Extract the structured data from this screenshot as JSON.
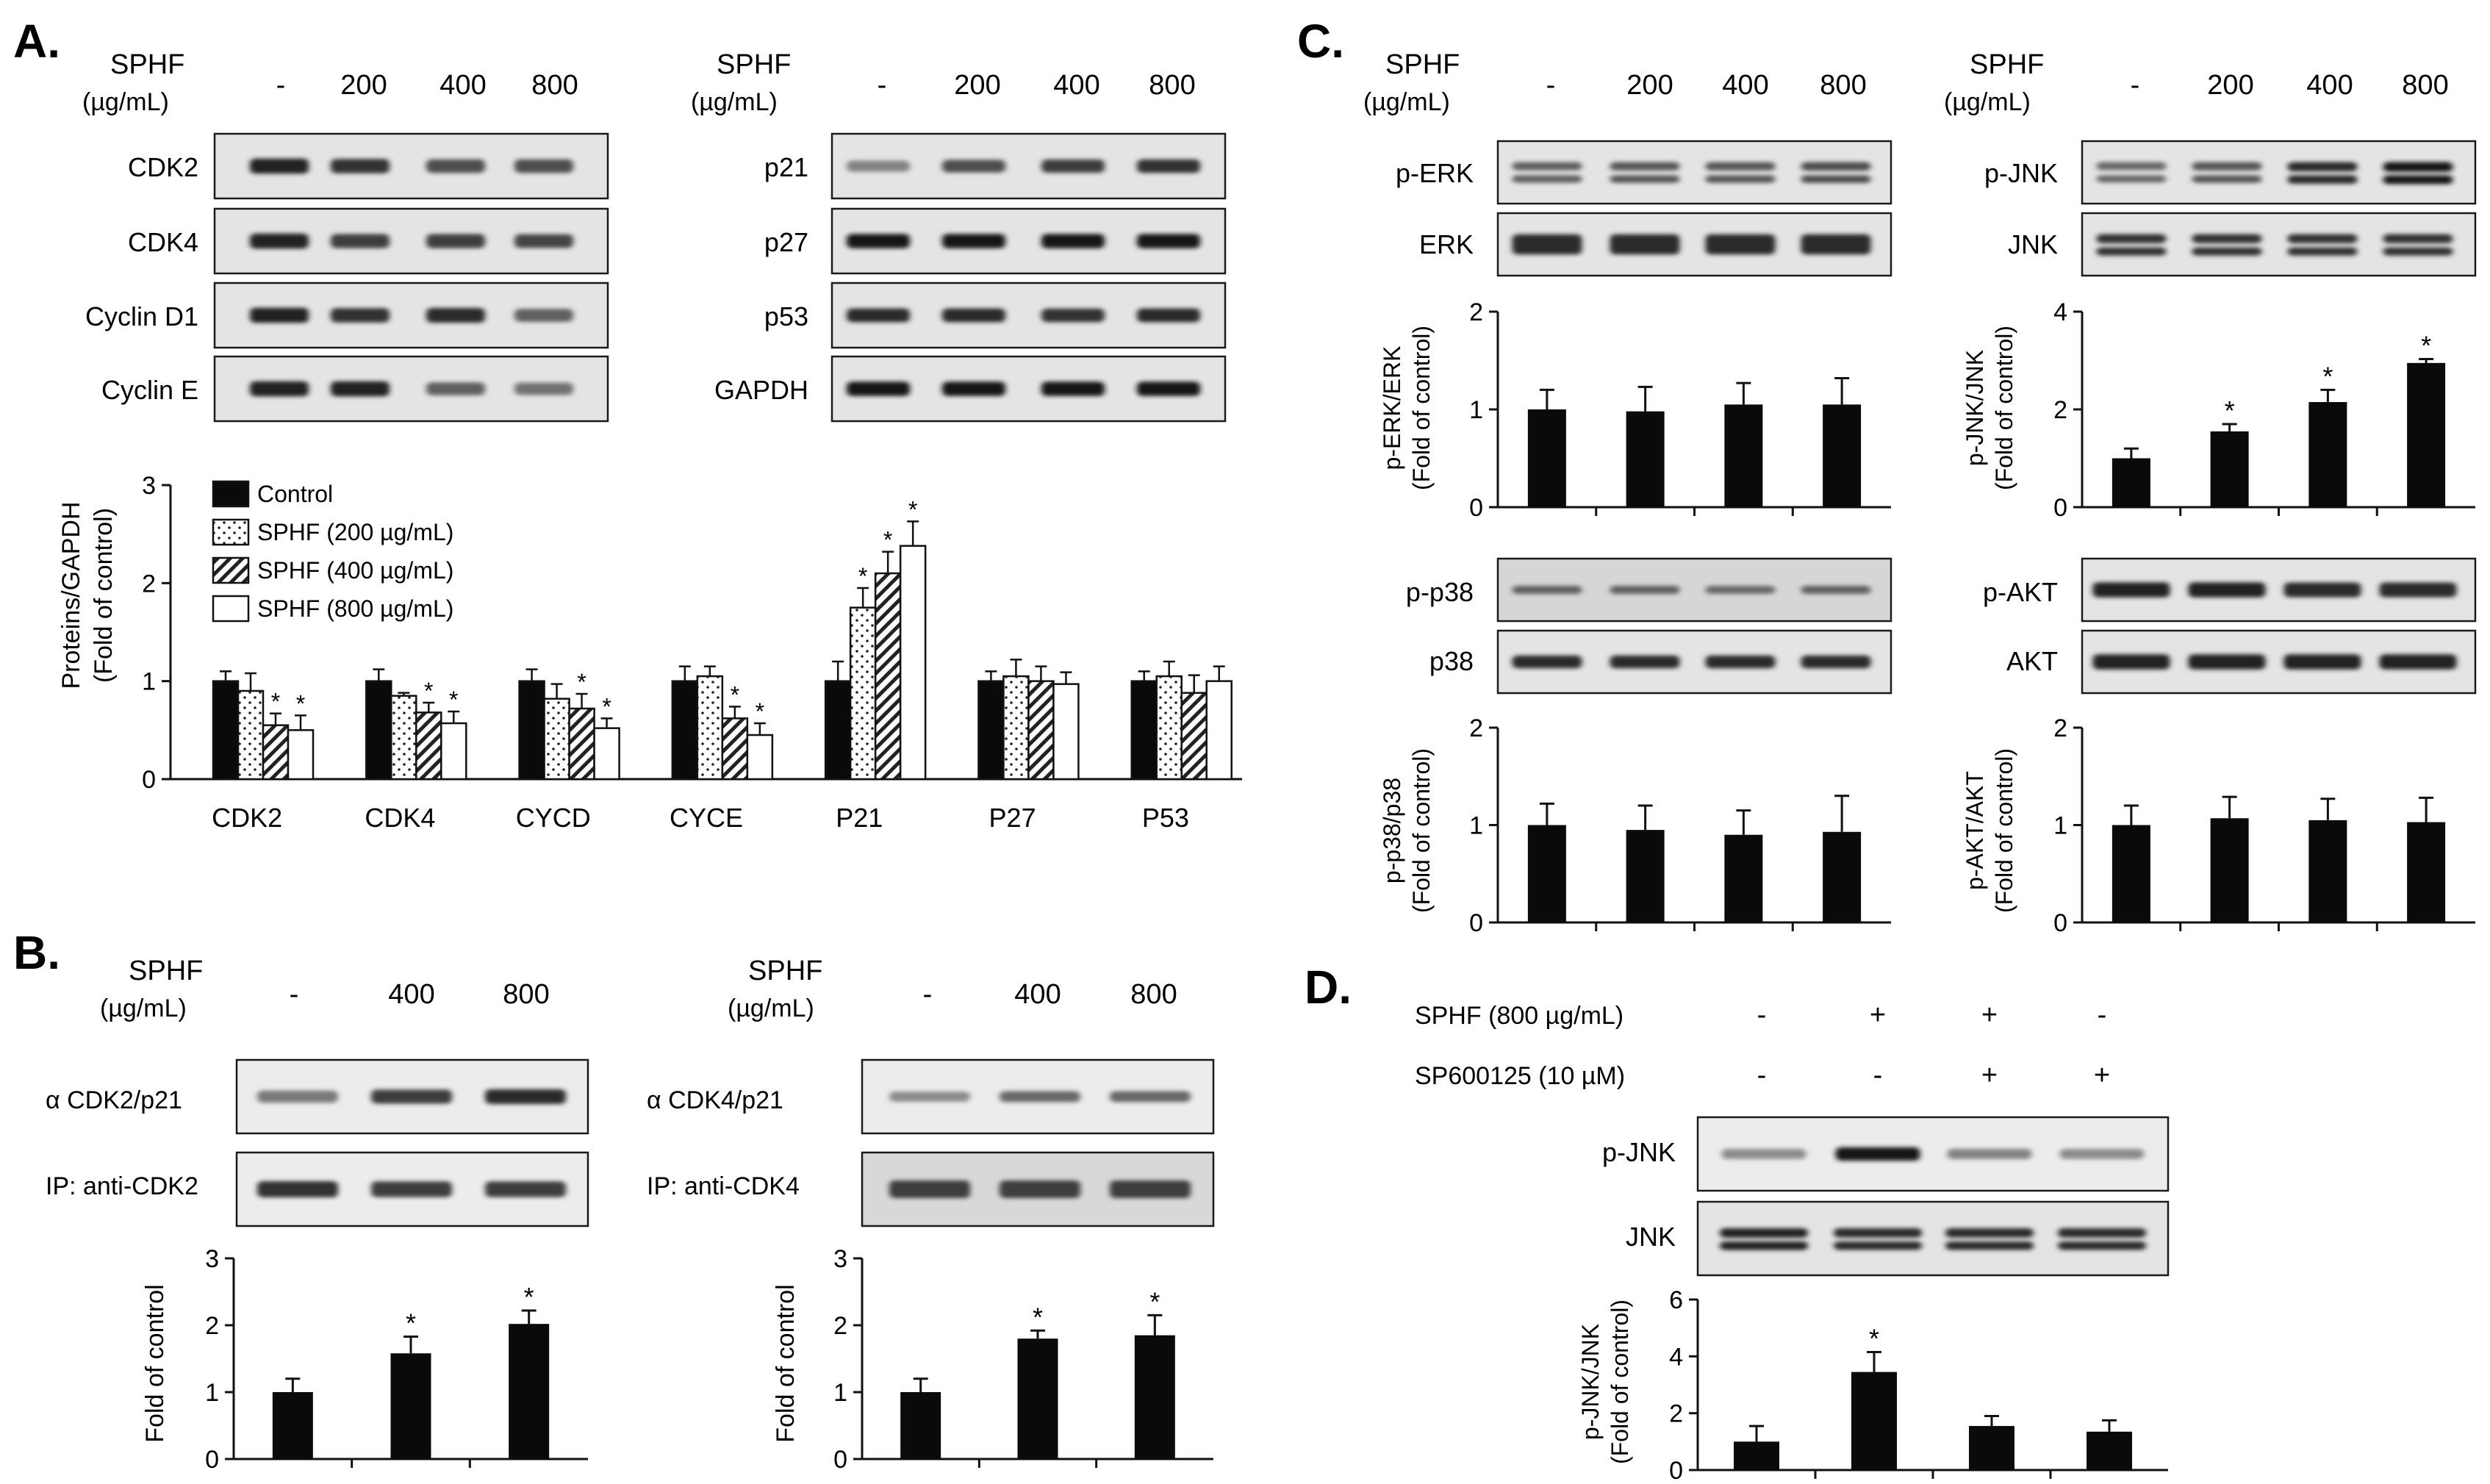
{
  "figure": {
    "panels": {
      "A": {
        "label": "A.",
        "treatment": "SPHF",
        "unit": "(µg/mL)",
        "doses": [
          "-",
          "200",
          "400",
          "800"
        ],
        "blot_left": [
          "CDK2",
          "CDK4",
          "Cyclin D1",
          "Cyclin E"
        ],
        "blot_right": [
          "p21",
          "p27",
          "p53",
          "GAPDH"
        ]
      },
      "B": {
        "label": "B.",
        "treatment": "SPHF",
        "unit": "(µg/mL)",
        "doses": [
          "-",
          "400",
          "800"
        ],
        "left_blots": [
          "α CDK2/p21",
          "IP: anti-CDK2"
        ],
        "right_blots": [
          "α CDK4/p21",
          "IP: anti-CDK4"
        ]
      },
      "C": {
        "label": "C.",
        "treatment": "SPHF",
        "unit": "(µg/mL)",
        "doses": [
          "-",
          "200",
          "400",
          "800"
        ],
        "erk_blots": [
          "p-ERK",
          "ERK"
        ],
        "jnk_blots": [
          "p-JNK",
          "JNK"
        ],
        "p38_blots": [
          "p-p38",
          "p38"
        ],
        "akt_blots": [
          "p-AKT",
          "AKT"
        ]
      },
      "D": {
        "label": "D.",
        "row1_label": "SPHF (800 µg/mL)",
        "row1_signs": [
          "-",
          "+",
          "+",
          "-"
        ],
        "row2_label": "SP600125 (10 µM)",
        "row2_signs": [
          "-",
          "-",
          "+",
          "+"
        ],
        "blots": [
          "p-JNK",
          "JNK"
        ]
      }
    },
    "blot_intensity": {
      "A_left": [
        [
          0.95,
          0.85,
          0.7,
          0.7
        ],
        [
          0.95,
          0.8,
          0.8,
          0.75
        ],
        [
          0.95,
          0.85,
          0.9,
          0.6
        ],
        [
          0.95,
          0.95,
          0.6,
          0.5
        ]
      ],
      "A_right": [
        [
          0.4,
          0.7,
          0.8,
          0.85
        ],
        [
          1,
          1,
          1,
          1
        ],
        [
          0.9,
          0.9,
          0.85,
          0.9
        ],
        [
          1,
          1,
          1,
          1
        ]
      ],
      "B_left": [
        [
          0.45,
          0.8,
          0.9
        ],
        [
          0.85,
          0.8,
          0.8
        ]
      ],
      "B_right": [
        [
          0.35,
          0.55,
          0.55
        ],
        [
          0.8,
          0.8,
          0.8
        ]
      ],
      "C_erk": [
        [
          0.6,
          0.65,
          0.65,
          0.7
        ],
        [
          0.9,
          0.9,
          0.9,
          0.9
        ]
      ],
      "C_jnk": [
        [
          0.55,
          0.65,
          0.9,
          1.0
        ],
        [
          0.85,
          0.85,
          0.85,
          0.85
        ]
      ],
      "C_p38": [
        [
          0.6,
          0.6,
          0.55,
          0.6
        ],
        [
          0.9,
          0.9,
          0.9,
          0.9
        ]
      ],
      "C_akt": [
        [
          0.95,
          0.95,
          0.9,
          0.9
        ],
        [
          0.95,
          0.95,
          0.95,
          0.95
        ]
      ],
      "D": [
        [
          0.35,
          1.0,
          0.4,
          0.35
        ],
        [
          0.95,
          0.9,
          0.9,
          0.9
        ]
      ]
    }
  },
  "chart_data": [
    {
      "id": "A",
      "type": "bar",
      "title": "",
      "ylabel": "Proteins/GAPDH",
      "ylabel2": "(Fold of control)",
      "xlabel": "",
      "ylim": [
        0,
        3
      ],
      "yticks": [
        "0",
        "1",
        "2",
        "3"
      ],
      "categories": [
        "CDK2",
        "CDK4",
        "CYCD",
        "CYCE",
        "P21",
        "P27",
        "P53"
      ],
      "series": [
        {
          "name": "Control",
          "values": [
            1,
            1,
            1,
            1,
            1,
            1,
            1
          ],
          "errors": [
            0.1,
            0.12,
            0.12,
            0.15,
            0.2,
            0.1,
            0.1
          ]
        },
        {
          "name": "SPHF (200 µg/mL)",
          "values": [
            0.9,
            0.85,
            0.82,
            1.05,
            1.75,
            1.05,
            1.05
          ],
          "errors": [
            0.18,
            0.03,
            0.15,
            0.1,
            0.2,
            0.17,
            0.15
          ]
        },
        {
          "name": "SPHF (400 µg/mL)",
          "values": [
            0.55,
            0.68,
            0.72,
            0.62,
            2.1,
            1.0,
            0.88
          ],
          "errors": [
            0.12,
            0.1,
            0.15,
            0.12,
            0.22,
            0.15,
            0.18
          ]
        },
        {
          "name": "SPHF (800 µg/mL)",
          "values": [
            0.5,
            0.57,
            0.52,
            0.45,
            2.38,
            0.97,
            1.0
          ],
          "errors": [
            0.15,
            0.12,
            0.1,
            0.12,
            0.25,
            0.12,
            0.15
          ]
        }
      ],
      "significance": "*",
      "star_flags": [
        [
          0,
          0,
          0,
          0,
          0,
          0,
          0
        ],
        [
          0,
          0,
          0,
          0,
          1,
          0,
          0
        ],
        [
          1,
          1,
          1,
          1,
          1,
          0,
          0
        ],
        [
          1,
          1,
          1,
          1,
          1,
          0,
          0
        ]
      ]
    },
    {
      "id": "B-left",
      "type": "bar",
      "ylabel": "Fold of control",
      "ylim": [
        0,
        3
      ],
      "yticks": [
        "0",
        "1",
        "2",
        "3"
      ],
      "categories": [
        "-",
        "400",
        "800"
      ],
      "values": [
        1,
        1.58,
        2.02
      ],
      "errors": [
        0.2,
        0.25,
        0.2
      ],
      "stars": [
        false,
        true,
        true
      ],
      "significance": "*"
    },
    {
      "id": "B-right",
      "type": "bar",
      "ylabel": "Fold of control",
      "ylim": [
        0,
        3
      ],
      "yticks": [
        "0",
        "1",
        "2",
        "3"
      ],
      "categories": [
        "-",
        "400",
        "800"
      ],
      "values": [
        1,
        1.8,
        1.85
      ],
      "errors": [
        0.2,
        0.12,
        0.3
      ],
      "stars": [
        false,
        true,
        true
      ],
      "significance": "*"
    },
    {
      "id": "C-erk",
      "type": "bar",
      "ylabel": "p-ERK/ERK",
      "ylabel2": "(Fold of control)",
      "ylim": [
        0,
        2
      ],
      "yticks": [
        "0",
        "1",
        "2"
      ],
      "categories": [
        "-",
        "200",
        "400",
        "800"
      ],
      "values": [
        1.0,
        0.98,
        1.05,
        1.05
      ],
      "errors": [
        0.2,
        0.25,
        0.22,
        0.27
      ],
      "stars": [
        false,
        false,
        false,
        false
      ],
      "significance": "*"
    },
    {
      "id": "C-jnk",
      "type": "bar",
      "ylabel": "p-JNK/JNK",
      "ylabel2": "(Fold of control)",
      "ylim": [
        0,
        4
      ],
      "yticks": [
        "0",
        "2",
        "4"
      ],
      "categories": [
        "-",
        "200",
        "400",
        "800"
      ],
      "values": [
        1.0,
        1.55,
        2.15,
        2.95
      ],
      "errors": [
        0.2,
        0.15,
        0.25,
        0.08
      ],
      "stars": [
        false,
        true,
        true,
        true
      ],
      "significance": "*"
    },
    {
      "id": "C-p38",
      "type": "bar",
      "ylabel": "p-p38/p38",
      "ylabel2": "(Fold of control)",
      "ylim": [
        0,
        2
      ],
      "yticks": [
        "0",
        "1",
        "2"
      ],
      "categories": [
        "-",
        "200",
        "400",
        "800"
      ],
      "values": [
        1.0,
        0.95,
        0.9,
        0.93
      ],
      "errors": [
        0.22,
        0.25,
        0.25,
        0.37
      ],
      "stars": [
        false,
        false,
        false,
        false
      ],
      "significance": "*"
    },
    {
      "id": "C-akt",
      "type": "bar",
      "ylabel": "p-AKT/AKT",
      "ylabel2": "(Fold of control)",
      "ylim": [
        0,
        2
      ],
      "yticks": [
        "0",
        "1",
        "2"
      ],
      "categories": [
        "-",
        "200",
        "400",
        "800"
      ],
      "values": [
        1.0,
        1.07,
        1.05,
        1.03
      ],
      "errors": [
        0.2,
        0.22,
        0.22,
        0.25
      ],
      "stars": [
        false,
        false,
        false,
        false
      ],
      "significance": "*"
    },
    {
      "id": "D",
      "type": "bar",
      "ylabel": "p-JNK/JNK",
      "ylabel2": "(Fold of control)",
      "ylim": [
        0,
        6
      ],
      "yticks": [
        "0",
        "2",
        "4",
        "6"
      ],
      "categories": [
        "-/-",
        "+/-",
        "+/+",
        "-/+"
      ],
      "values": [
        1.0,
        3.45,
        1.55,
        1.35
      ],
      "errors": [
        0.55,
        0.7,
        0.35,
        0.4
      ],
      "stars": [
        false,
        true,
        false,
        false
      ],
      "significance": "*"
    }
  ]
}
